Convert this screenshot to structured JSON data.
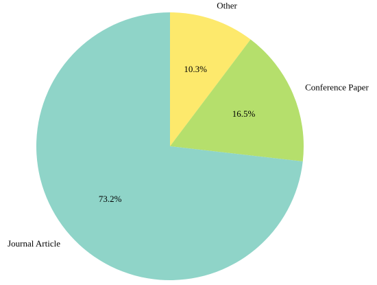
{
  "chart_data": {
    "type": "pie",
    "categories": [
      "Other",
      "Conference Paper",
      "Journal Article"
    ],
    "values": [
      10.3,
      16.5,
      73.2
    ],
    "value_labels": [
      "10.3%",
      "16.5%",
      "73.2%"
    ],
    "colors": [
      "#fde96c",
      "#b5df6c",
      "#8fd4c8"
    ]
  }
}
